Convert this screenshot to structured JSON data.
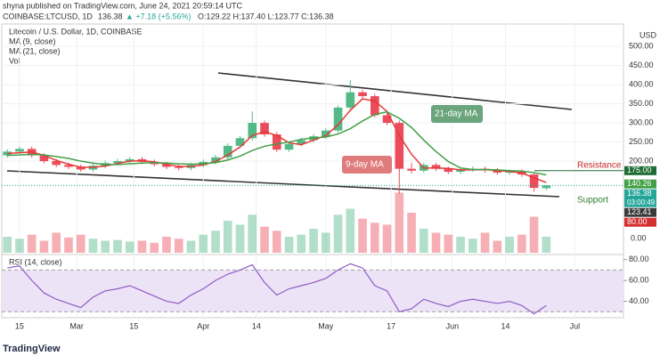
{
  "header": {
    "publisher": "shyna published on TradingView.com, June 24, 2021 20:59:14 UTC",
    "symbol": "COINBASE:LTCUSD, 1D",
    "last": "136.38",
    "change": "▲ +7.18 (+5.56%)",
    "ohlc": "O:129.22 H:137.40 L:123.77 C:136.38"
  },
  "footer": {
    "brand": "TradingView"
  },
  "chart_data": {
    "type": "candlestick",
    "title": "Litecoin / U.S. Dollar, 1D, COINBASE",
    "y_unit": "USD",
    "categories": [
      null,
      null,
      null,
      null,
      null,
      null,
      null,
      null,
      null,
      null,
      null,
      null,
      null,
      null,
      null,
      null,
      null,
      null,
      null,
      null,
      null,
      null,
      null,
      null,
      null,
      null,
      null,
      null,
      null,
      null,
      null,
      null,
      null,
      null,
      null,
      null,
      null,
      null,
      null,
      null,
      null,
      null,
      null,
      null,
      null
    ],
    "open": [
      215,
      225,
      232,
      215,
      200,
      190,
      185,
      178,
      188,
      195,
      200,
      205,
      198,
      192,
      185,
      182,
      190,
      198,
      210,
      240,
      260,
      300,
      270,
      230,
      245,
      255,
      265,
      280,
      340,
      380,
      370,
      320,
      300,
      180,
      175,
      190,
      180,
      172,
      178,
      180,
      176,
      170,
      172,
      165,
      129.22
    ],
    "high": [
      231,
      238,
      238,
      221,
      206,
      196,
      191,
      194,
      201,
      206,
      211,
      211,
      204,
      198,
      191,
      196,
      204,
      216,
      246,
      266,
      330,
      306,
      276,
      251,
      261,
      271,
      286,
      346,
      412,
      386,
      376,
      326,
      306,
      195,
      196,
      196,
      186,
      184,
      186,
      186,
      182,
      178,
      178,
      170,
      137.4
    ],
    "low": [
      209,
      219,
      209,
      194,
      184,
      179,
      172,
      172,
      182,
      189,
      194,
      192,
      186,
      179,
      176,
      176,
      184,
      192,
      204,
      234,
      254,
      264,
      224,
      224,
      239,
      249,
      259,
      274,
      334,
      364,
      314,
      294,
      115,
      168,
      169,
      174,
      166,
      166,
      172,
      170,
      164,
      164,
      159,
      120,
      123.77
    ],
    "close": [
      225,
      232,
      215,
      200,
      190,
      185,
      178,
      188,
      195,
      200,
      205,
      198,
      192,
      185,
      182,
      190,
      198,
      210,
      240,
      260,
      300,
      270,
      230,
      245,
      255,
      265,
      280,
      340,
      380,
      370,
      320,
      300,
      180,
      175,
      190,
      180,
      172,
      178,
      180,
      176,
      170,
      172,
      165,
      130,
      136.38
    ],
    "up_color": "#53b987",
    "down_color": "#eb4d5c",
    "series": [
      {
        "name": "MA (9, close)",
        "color": "#e53935",
        "values": [
          220,
          222,
          224,
          215,
          202,
          192,
          184,
          184,
          187,
          194,
          200,
          201,
          198,
          192,
          186,
          186,
          190,
          199,
          216,
          237,
          267,
          277,
          267,
          248,
          243,
          255,
          267,
          295,
          333,
          363,
          357,
          330,
          267,
          218,
          182,
          182,
          181,
          177,
          177,
          178,
          175,
          173,
          169,
          156,
          144
        ]
      },
      {
        "name": "MA (21, close)",
        "color": "#43a047",
        "values": [
          215,
          216,
          218,
          216,
          212,
          207,
          200,
          195,
          191,
          191,
          193,
          195,
          196,
          195,
          193,
          192,
          193,
          196,
          203,
          213,
          228,
          239,
          245,
          250,
          257,
          261,
          263,
          271,
          285,
          305,
          322,
          329,
          312,
          288,
          255,
          225,
          199,
          182,
          178,
          178,
          177,
          175,
          174,
          170,
          164
        ]
      }
    ],
    "volume": {
      "name": "Vol",
      "values": [
        40,
        35,
        45,
        30,
        50,
        38,
        45,
        35,
        30,
        32,
        28,
        30,
        25,
        40,
        35,
        30,
        45,
        55,
        80,
        70,
        95,
        65,
        55,
        40,
        45,
        60,
        50,
        95,
        110,
        85,
        75,
        70,
        150,
        100,
        60,
        50,
        45,
        40,
        35,
        50,
        30,
        40,
        45,
        90,
        40
      ],
      "ylim": [
        0,
        160
      ],
      "yticks": [
        {
          "value": 0,
          "label": "0.00"
        }
      ]
    },
    "rsi": {
      "name": "RSI (14, close)",
      "color": "#8e5cc4",
      "values": [
        72,
        74,
        60,
        48,
        42,
        38,
        34,
        44,
        50,
        52,
        55,
        50,
        45,
        40,
        38,
        46,
        52,
        60,
        66,
        70,
        75,
        58,
        46,
        52,
        55,
        58,
        62,
        70,
        76,
        72,
        55,
        50,
        30,
        33,
        42,
        38,
        35,
        40,
        42,
        40,
        38,
        40,
        36,
        28,
        36
      ],
      "ylim": [
        26,
        84
      ],
      "band": [
        30,
        70
      ],
      "yticks": [
        {
          "value": 80,
          "label": "80.00"
        },
        {
          "value": 60,
          "label": "60.00"
        },
        {
          "value": 40,
          "label": "40.00"
        }
      ]
    },
    "ylim": [
      -42,
      540
    ],
    "yticks": [
      {
        "value": 500,
        "label": "500.00"
      },
      {
        "value": 450,
        "label": "450.00"
      },
      {
        "value": 400,
        "label": "400.00"
      },
      {
        "value": 350,
        "label": "350.00"
      },
      {
        "value": 300,
        "label": "300.00"
      },
      {
        "value": 250,
        "label": "250.00"
      },
      {
        "value": 200,
        "label": "200.00"
      }
    ],
    "xlim": [
      -0.45,
      50.3
    ],
    "xticks": [
      {
        "value": 1,
        "label": "15"
      },
      {
        "value": 5.667,
        "label": "Mar"
      },
      {
        "value": 10.333,
        "label": "15"
      },
      {
        "value": 16,
        "label": "Apr"
      },
      {
        "value": 20.333,
        "label": "14"
      },
      {
        "value": 26,
        "label": "May"
      },
      {
        "value": 31.333,
        "label": "17"
      },
      {
        "value": 36.333,
        "label": "Jun"
      },
      {
        "value": 40.667,
        "label": "14"
      },
      {
        "value": 46.333,
        "label": "Jul"
      }
    ],
    "price_labels": [
      {
        "value": 175,
        "label": "175.00",
        "color": "#1e6b34"
      },
      {
        "value": 140.26,
        "label": "140.26",
        "color": "#43a047"
      },
      {
        "value": 136.38,
        "label": "136.38",
        "sub": "03:00:49",
        "color": "#26a69a"
      },
      {
        "value": 123.41,
        "label": "123.41",
        "color": "#3a3a3a"
      },
      {
        "value": 80,
        "label": "80.00",
        "color": "#d32f2f",
        "axis": "volume"
      }
    ],
    "annotations": [
      {
        "text": "21-day MA",
        "color": "#6aa57c"
      },
      {
        "text": "9-day MA",
        "color": "#e07b7b"
      },
      {
        "text": "Resistance",
        "color": "#c62828"
      },
      {
        "text": "Support",
        "color": "#2e7d32"
      }
    ]
  }
}
